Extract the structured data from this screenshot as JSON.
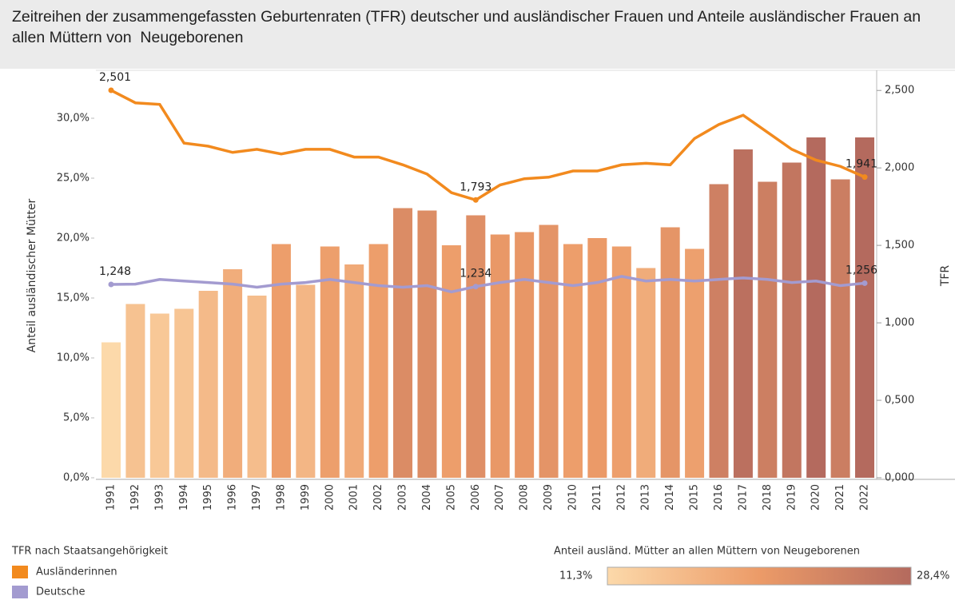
{
  "chart_data": {
    "type": "bar",
    "title": "Zeitreihen der zusammengefassten Geburtenraten (TFR) deutscher und ausländischer Frauen und Anteile ausländischer Frauen an allen Müttern von  Neugeborenen",
    "y_label": "Anteil ausländischer Mütter",
    "y2_label": "TFR",
    "categories": [
      "1991",
      "1992",
      "1993",
      "1994",
      "1995",
      "1996",
      "1997",
      "1998",
      "1999",
      "2000",
      "2001",
      "2002",
      "2003",
      "2004",
      "2005",
      "2006",
      "2007",
      "2008",
      "2009",
      "2010",
      "2011",
      "2012",
      "2013",
      "2014",
      "2015",
      "2016",
      "2017",
      "2018",
      "2019",
      "2020",
      "2021",
      "2022"
    ],
    "values": [
      11.3,
      14.5,
      13.7,
      14.1,
      15.6,
      17.4,
      15.2,
      19.5,
      16.1,
      19.3,
      17.8,
      19.5,
      22.5,
      22.3,
      19.4,
      21.9,
      20.3,
      20.5,
      21.1,
      19.5,
      20.0,
      19.3,
      17.5,
      20.9,
      19.1,
      24.5,
      27.4,
      24.7,
      26.3,
      28.4,
      24.9,
      28.4
    ],
    "ylim": [
      0,
      34
    ],
    "yticks": [
      {
        "value": 0,
        "label": "0,0%"
      },
      {
        "value": 5,
        "label": "5,0%"
      },
      {
        "value": 10,
        "label": "10,0%"
      },
      {
        "value": 15,
        "label": "15,0%"
      },
      {
        "value": 20,
        "label": "20,0%"
      },
      {
        "value": 25,
        "label": "25,0%"
      },
      {
        "value": 30,
        "label": "30,0%"
      }
    ],
    "y2lim": [
      0,
      2.63
    ],
    "y2ticks": [
      {
        "value": 0,
        "label": "0,000"
      },
      {
        "value": 0.5,
        "label": "0,500"
      },
      {
        "value": 1,
        "label": "1,000"
      },
      {
        "value": 1.5,
        "label": "1,500"
      },
      {
        "value": 2,
        "label": "2,000"
      },
      {
        "value": 2.5,
        "label": "2,500"
      }
    ],
    "legend_title": "TFR nach Staatsangehörigkeit",
    "series": [
      {
        "name": "Ausländerinnen",
        "color": "#f28a1e",
        "type": "line",
        "axis": "y2",
        "values": [
          2.501,
          2.42,
          2.41,
          2.16,
          2.14,
          2.1,
          2.12,
          2.09,
          2.12,
          2.12,
          2.07,
          2.07,
          2.02,
          1.96,
          1.84,
          1.793,
          1.89,
          1.93,
          1.94,
          1.98,
          1.98,
          2.02,
          2.03,
          2.02,
          2.19,
          2.28,
          2.34,
          2.23,
          2.12,
          2.05,
          2.01,
          1.941
        ],
        "value_labels": [
          "2,501",
          null,
          null,
          null,
          null,
          null,
          null,
          null,
          null,
          null,
          null,
          null,
          null,
          null,
          null,
          "1,793",
          null,
          null,
          null,
          null,
          null,
          null,
          null,
          null,
          null,
          null,
          null,
          null,
          null,
          null,
          null,
          "1,941"
        ]
      },
      {
        "name": "Deutsche",
        "color": "#a39bd0",
        "type": "line",
        "axis": "y2",
        "values": [
          1.248,
          1.25,
          1.28,
          1.27,
          1.26,
          1.25,
          1.23,
          1.25,
          1.26,
          1.28,
          1.26,
          1.24,
          1.23,
          1.24,
          1.2,
          1.234,
          1.26,
          1.28,
          1.26,
          1.24,
          1.26,
          1.3,
          1.27,
          1.28,
          1.27,
          1.28,
          1.29,
          1.28,
          1.26,
          1.27,
          1.24,
          1.256
        ],
        "value_labels": [
          "1,248",
          null,
          null,
          null,
          null,
          null,
          null,
          null,
          null,
          null,
          null,
          null,
          null,
          null,
          null,
          "1,234",
          null,
          null,
          null,
          null,
          null,
          null,
          null,
          null,
          null,
          null,
          null,
          null,
          null,
          null,
          null,
          "1,256"
        ]
      }
    ],
    "color_scale": {
      "title": "Anteil ausländ. Mütter an allen Müttern von Neugeborenen",
      "min": {
        "value": 11.3,
        "label": "11,3%"
      },
      "max": {
        "value": 28.4,
        "label": "28,4%"
      },
      "colors": [
        "#fcd9aa",
        "#ec9b68",
        "#b46a5e"
      ]
    }
  }
}
